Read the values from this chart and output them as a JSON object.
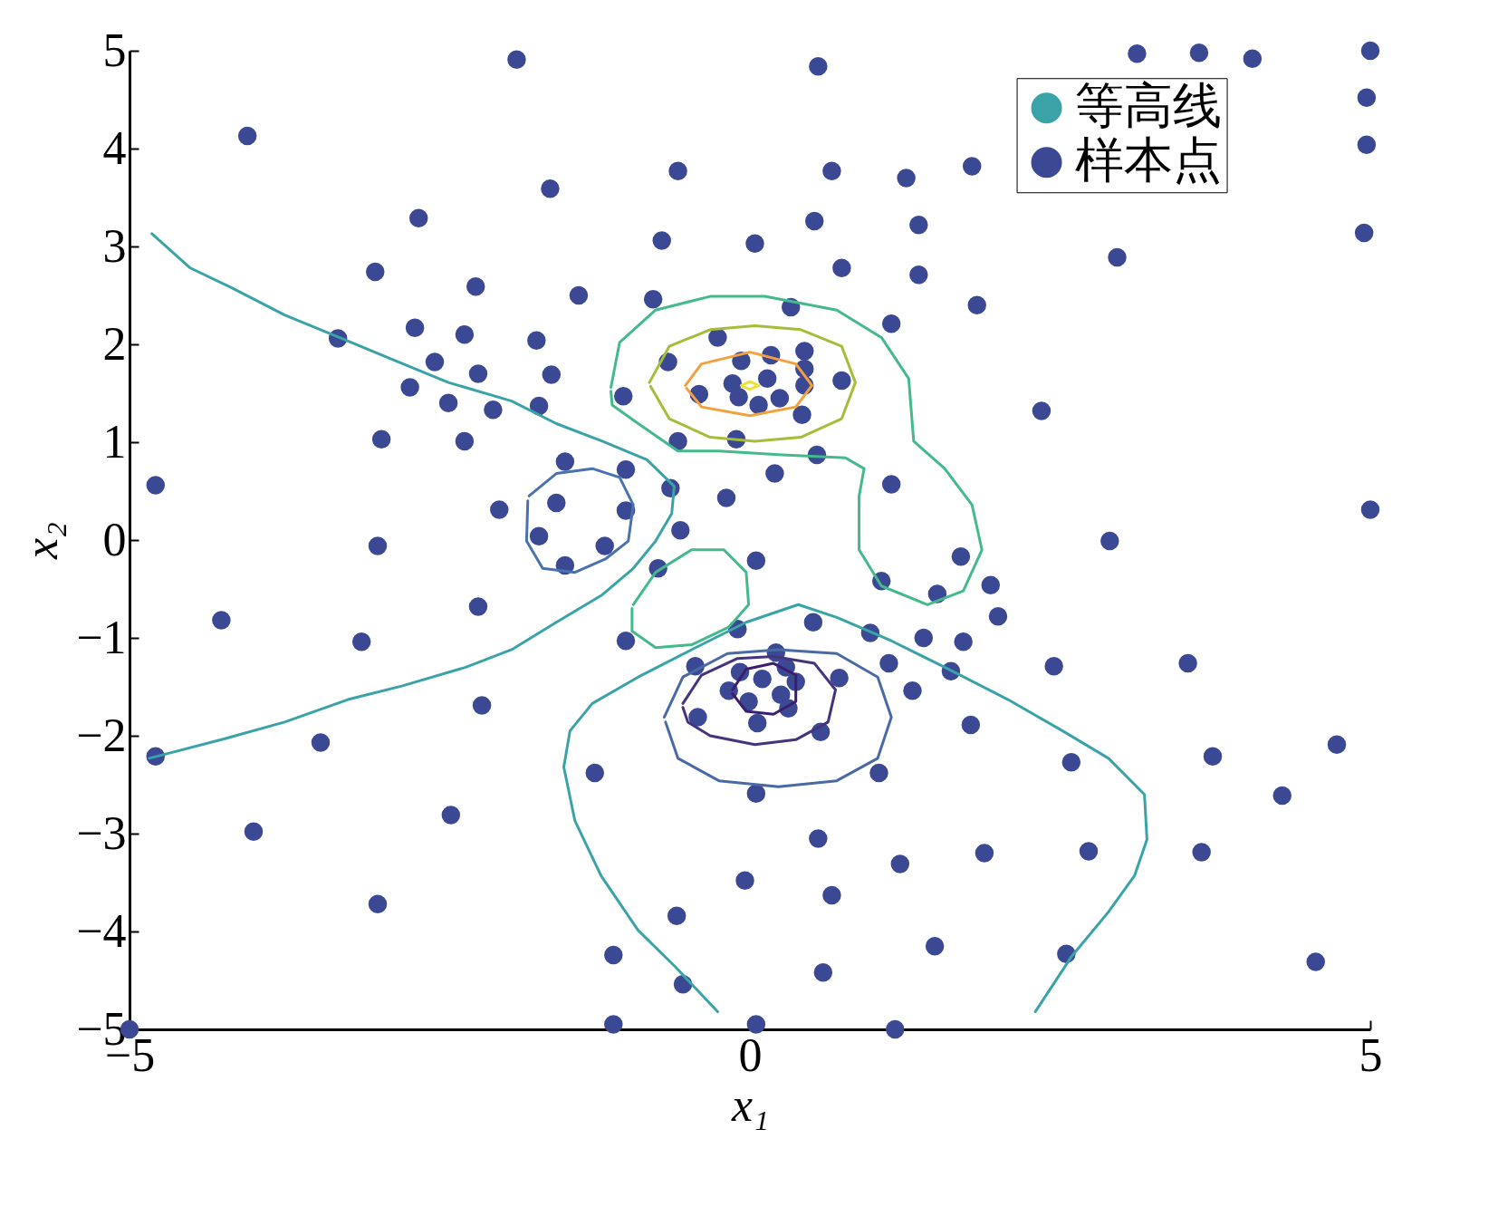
{
  "chart_data": {
    "type": "scatter",
    "xlabel": "x₁",
    "ylabel": "x₂",
    "xlim": [
      -5,
      5
    ],
    "ylim": [
      -5,
      5
    ],
    "xticks": [
      -5,
      0,
      5
    ],
    "yticks": [
      -5,
      -4,
      -3,
      -2,
      -1,
      0,
      1,
      2,
      3,
      4,
      5
    ],
    "grid": false,
    "legend": "top right",
    "marker": "circle",
    "series": [
      {
        "name": "样本点",
        "color": "#3b4994",
        "x": [
          -5,
          -4.79,
          -4.79,
          -4.26,
          -4.05,
          -4.0,
          -3.46,
          -3.32,
          -3.13,
          -3.02,
          -3.0,
          -3.0,
          -2.97,
          -2.74,
          -2.7,
          -2.67,
          -2.54,
          -2.43,
          -2.41,
          -2.3,
          -2.3,
          -2.21,
          -2.19,
          -2.19,
          -2.16,
          -2.07,
          -2.02,
          -1.88,
          -1.72,
          -1.7,
          -1.7,
          -1.61,
          -1.6,
          -1.56,
          -1.49,
          -1.49,
          -1.38,
          -1.25,
          -1.17,
          -1.1,
          -1.1,
          -1.02,
          -1.0,
          -1.0,
          -1.0,
          -0.78,
          -0.74,
          -0.71,
          -0.66,
          -0.64,
          -0.59,
          -0.58,
          -0.58,
          -0.56,
          -0.54,
          -0.44,
          -0.42,
          -0.41,
          -0.26,
          -0.19,
          -0.17,
          -0.14,
          -0.11,
          -0.1,
          -0.09,
          -0.08,
          -0.07,
          -0.04,
          -0.01,
          0.04,
          0.05,
          0.05,
          0.05,
          0.06,
          0.07,
          0.1,
          0.14,
          0.17,
          0.2,
          0.21,
          0.24,
          0.25,
          0.29,
          0.31,
          0.33,
          0.37,
          0.42,
          0.44,
          0.44,
          0.44,
          0.51,
          0.52,
          0.54,
          0.55,
          0.55,
          0.57,
          0.59,
          0.66,
          0.66,
          0.72,
          0.74,
          0.74,
          0.97,
          1.04,
          1.06,
          1.12,
          1.14,
          1.14,
          1.17,
          1.21,
          1.26,
          1.31,
          1.36,
          1.36,
          1.4,
          1.49,
          1.51,
          1.62,
          1.7,
          1.72,
          1.78,
          1.79,
          1.83,
          1.89,
          1.94,
          2.0,
          2.35,
          2.45,
          2.55,
          2.59,
          2.73,
          2.9,
          2.96,
          3.12,
          3.53,
          3.62,
          3.64,
          3.73,
          4.05,
          4.29,
          4.56,
          4.73,
          4.97,
          4.97,
          4.95,
          5.0,
          5.0
        ],
        "values": [
          -5,
          0.56,
          -2.21,
          -0.82,
          4.13,
          -2.98,
          -2.07,
          2.06,
          -1.04,
          2.74,
          -0.06,
          -3.72,
          1.03,
          1.56,
          2.17,
          3.29,
          1.82,
          1.4,
          -2.81,
          2.1,
          1.01,
          2.59,
          -0.68,
          1.7,
          -1.69,
          1.33,
          0.31,
          4.91,
          2.04,
          1.37,
          0.04,
          3.59,
          1.69,
          0.38,
          0.8,
          -0.26,
          2.5,
          -2.38,
          -0.06,
          -4.24,
          -4.95,
          1.47,
          0.72,
          0.3,
          -1.03,
          2.46,
          -0.29,
          3.06,
          1.82,
          0.53,
          -3.84,
          3.77,
          1.01,
          0.1,
          -4.54,
          -1.29,
          -1.81,
          1.49,
          2.07,
          0.43,
          -1.54,
          1.6,
          1.03,
          -0.91,
          1.46,
          -1.35,
          1.83,
          -3.48,
          -1.65,
          3.03,
          -0.21,
          -2.59,
          -4.95,
          -1.87,
          1.38,
          -1.42,
          1.65,
          1.89,
          0.68,
          -1.15,
          1.45,
          -1.58,
          -1.3,
          -1.72,
          2.38,
          -1.45,
          1.28,
          1.93,
          1.75,
          1.58,
          -0.84,
          3.26,
          0.87,
          4.84,
          -3.05,
          -1.96,
          -4.42,
          -3.63,
          3.77,
          -1.41,
          2.78,
          1.63,
          -0.95,
          -2.38,
          -0.42,
          -1.26,
          2.21,
          0.57,
          -5,
          -3.31,
          3.7,
          -1.54,
          2.71,
          3.22,
          -1.0,
          -4.15,
          -0.55,
          -1.34,
          -0.17,
          -1.04,
          -1.89,
          3.82,
          2.4,
          -3.2,
          -0.46,
          -0.78,
          1.32,
          -1.29,
          -4.23,
          -2.27,
          -3.18,
          -0.01,
          2.89,
          4.97,
          -1.26,
          4.98,
          -3.19,
          -2.21,
          4.92,
          -2.61,
          -4.31,
          -2.09,
          4.52,
          4.04,
          3.14,
          0.31,
          5.0
        ]
      },
      {
        "name": "等高线",
        "color": "#3aa3a8",
        "type": "line",
        "marker": "none",
        "x": [
          -4.82,
          -4.51,
          -4.18,
          -3.75,
          -3.31,
          -2.87,
          -2.43,
          -1.92,
          -1.56,
          -1.19,
          -0.83,
          -0.61,
          -0.63,
          -0.76,
          -0.94,
          -1.19,
          -1.56,
          -1.92,
          -2.29,
          -2.8,
          -3.24,
          -3.75,
          -4.26,
          -4.84
        ],
        "values": [
          3.13,
          2.78,
          2.58,
          2.3,
          2.07,
          1.84,
          1.61,
          1.42,
          1.19,
          1.01,
          0.82,
          0.55,
          0.27,
          -0.01,
          -0.29,
          -0.56,
          -0.84,
          -1.12,
          -1.3,
          -1.49,
          -1.63,
          -1.86,
          -2.04,
          -2.23
        ]
      },
      {
        "color": "#3aa3a8",
        "type": "line",
        "marker": "none",
        "x": [
          -0.26,
          -0.61,
          -0.9,
          -1.2,
          -1.41,
          -1.5,
          -1.45,
          -1.27,
          -0.9,
          -0.47,
          -0.03,
          0.39,
          0.7,
          1.14,
          1.57,
          2.08,
          2.52,
          2.89,
          3.18,
          3.2,
          3.1,
          2.89,
          2.59,
          2.3
        ],
        "values": [
          -4.82,
          -4.35,
          -3.99,
          -3.43,
          -2.87,
          -2.32,
          -1.95,
          -1.67,
          -1.4,
          -1.12,
          -0.84,
          -0.66,
          -0.79,
          -1.03,
          -1.3,
          -1.63,
          -1.95,
          -2.23,
          -2.6,
          -3.06,
          -3.43,
          -3.8,
          -4.26,
          -4.82
        ]
      },
      {
        "color": "#4a72ae",
        "type": "line",
        "marker": "none",
        "x": [
          -1.78,
          -1.56,
          -1.27,
          -1.05,
          -0.94,
          -0.98,
          -1.16,
          -1.41,
          -1.67,
          -1.8,
          -1.79
        ],
        "values": [
          0.45,
          0.68,
          0.73,
          0.64,
          0.36,
          -0.01,
          -0.19,
          -0.33,
          -0.29,
          -0.01,
          0.4
        ]
      },
      {
        "color": "#44b98b",
        "type": "line",
        "marker": "none",
        "x": [
          -0.94,
          -0.76,
          -0.47,
          -0.21,
          -0.03,
          -0.01,
          -0.17,
          -0.47,
          -0.76,
          -0.95,
          -0.95
        ],
        "values": [
          -0.66,
          -0.33,
          -0.1,
          -0.1,
          -0.33,
          -0.66,
          -0.89,
          -1.07,
          -1.1,
          -0.93,
          -0.7
        ]
      },
      {
        "color": "#44b98b",
        "type": "line",
        "marker": "none",
        "x": [
          -1.12,
          -1.05,
          -0.76,
          -0.32,
          0.12,
          0.7,
          1.06,
          1.28,
          1.32,
          1.57,
          1.79,
          1.87,
          1.72,
          1.43,
          1.06,
          0.88,
          0.88,
          0.92,
          0.77,
          0.26,
          -0.25,
          -0.58,
          -0.9,
          -1.11,
          -1.12
        ],
        "values": [
          1.56,
          2.02,
          2.35,
          2.49,
          2.49,
          2.35,
          2.07,
          1.65,
          1.01,
          0.73,
          0.36,
          -0.1,
          -0.52,
          -0.66,
          -0.47,
          -0.1,
          0.45,
          0.73,
          0.84,
          0.87,
          0.91,
          0.91,
          1.19,
          1.38,
          1.52
        ]
      },
      {
        "color": "#a6bd3c",
        "type": "line",
        "marker": "none",
        "x": [
          -0.81,
          -0.65,
          -0.32,
          0.04,
          0.41,
          0.74,
          0.85,
          0.74,
          0.41,
          0.04,
          -0.32,
          -0.65,
          -0.8
        ],
        "values": [
          1.61,
          1.98,
          2.15,
          2.19,
          2.15,
          1.98,
          1.61,
          1.24,
          1.05,
          1.01,
          1.05,
          1.24,
          1.57
        ]
      },
      {
        "color": "#f4a03c",
        "type": "line",
        "marker": "none",
        "x": [
          -0.52,
          -0.39,
          0.0,
          0.37,
          0.5,
          0.37,
          0.0,
          -0.39,
          -0.51
        ],
        "values": [
          1.58,
          1.8,
          1.92,
          1.8,
          1.58,
          1.36,
          1.27,
          1.36,
          1.55
        ]
      },
      {
        "color": "#e8e33a",
        "type": "line",
        "marker": "none",
        "x": [
          -0.07,
          0,
          0.07,
          0,
          -0.06
        ],
        "values": [
          1.58,
          1.62,
          1.58,
          1.54,
          1.57
        ]
      },
      {
        "color": "#4a6aa6",
        "type": "line",
        "marker": "none",
        "x": [
          -0.69,
          -0.54,
          -0.18,
          0.23,
          0.7,
          1.03,
          1.14,
          1.03,
          0.7,
          0.23,
          -0.25,
          -0.58,
          -0.68
        ],
        "values": [
          -1.81,
          -1.4,
          -1.16,
          -1.12,
          -1.16,
          -1.4,
          -1.81,
          -2.23,
          -2.46,
          -2.52,
          -2.46,
          -2.23,
          -1.86
        ]
      },
      {
        "color": "#46337e",
        "type": "line",
        "marker": "none",
        "x": [
          -0.54,
          -0.39,
          -0.1,
          0.19,
          0.52,
          0.69,
          0.63,
          0.37,
          0.04,
          -0.32,
          -0.5,
          -0.54
        ],
        "values": [
          -1.67,
          -1.38,
          -1.21,
          -1.19,
          -1.26,
          -1.53,
          -1.86,
          -2.04,
          -2.09,
          -2.0,
          -1.86,
          -1.71
        ]
      },
      {
        "color": "#3b1f6e",
        "type": "line",
        "marker": "none",
        "x": [
          -0.14,
          -0.03,
          0.19,
          0.37,
          0.37,
          0.19,
          -0.03,
          -0.14
        ],
        "values": [
          -1.53,
          -1.32,
          -1.26,
          -1.38,
          -1.65,
          -1.78,
          -1.75,
          -1.57
        ]
      }
    ]
  }
}
